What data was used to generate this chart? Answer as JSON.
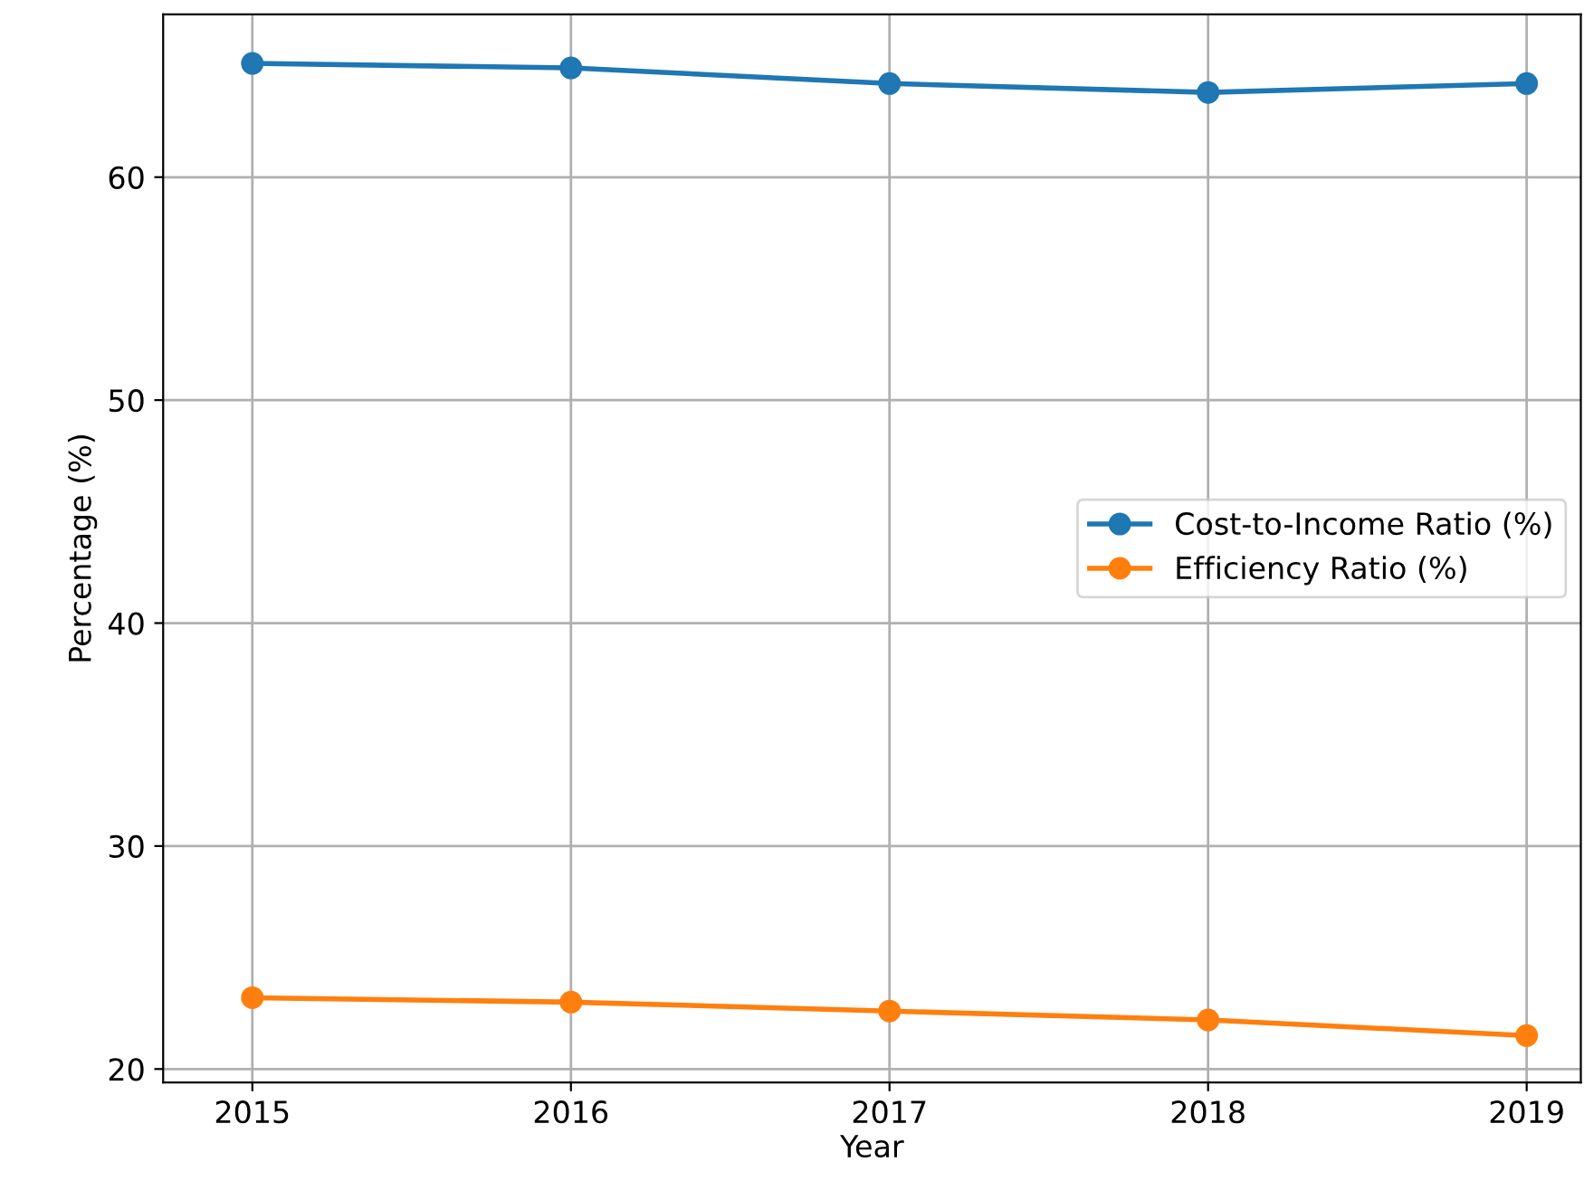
{
  "chart_data": {
    "type": "line",
    "xlabel": "Year",
    "ylabel": "Percentage (%)",
    "x": [
      2015,
      2016,
      2017,
      2018,
      2019
    ],
    "series": [
      {
        "name": "Cost-to-Income Ratio (%)",
        "color": "#1f77b4",
        "values": [
          65.1,
          64.9,
          64.2,
          63.8,
          64.2
        ]
      },
      {
        "name": "Efficiency Ratio (%)",
        "color": "#ff7f0e",
        "values": [
          23.2,
          23.0,
          22.6,
          22.2,
          21.5
        ]
      }
    ],
    "xlim": [
      2014.72,
      2019.17
    ],
    "ylim": [
      19.4,
      67.3
    ],
    "xticks": [
      2015,
      2016,
      2017,
      2018,
      2019
    ],
    "yticks": [
      20,
      30,
      40,
      50,
      60
    ],
    "grid": true,
    "legend": "center right",
    "marker": "circle",
    "line_style": "solid"
  }
}
